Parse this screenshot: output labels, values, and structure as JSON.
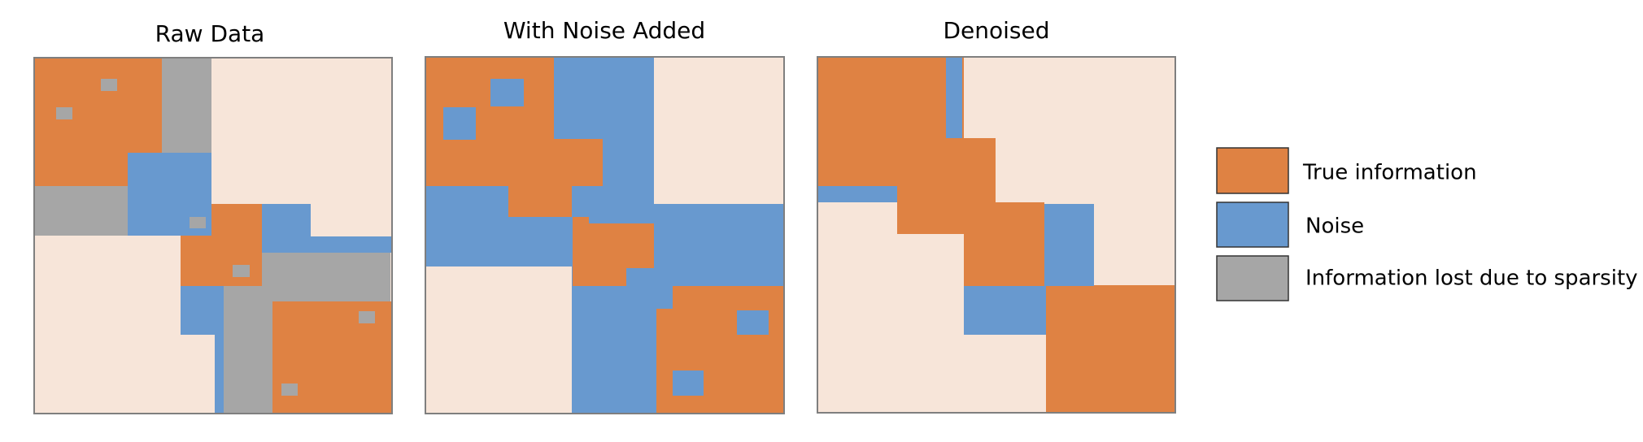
{
  "colors": {
    "true_information": "#DF8243",
    "noise": "#6899CF",
    "information_lost": "#A6A6A6",
    "background": "#F7E5D9",
    "frame": "#7F7F7F"
  },
  "panels": [
    {
      "title": "Raw Data"
    },
    {
      "title": "With Noise Added"
    },
    {
      "title": "Denoised"
    }
  ],
  "legend": {
    "items": [
      {
        "label": "True information",
        "color": "#DF8243"
      },
      {
        "label": "Noise",
        "color": "#6899CF"
      },
      {
        "label": "Information lost due to sparsity",
        "color": "#A6A6A6"
      }
    ]
  }
}
